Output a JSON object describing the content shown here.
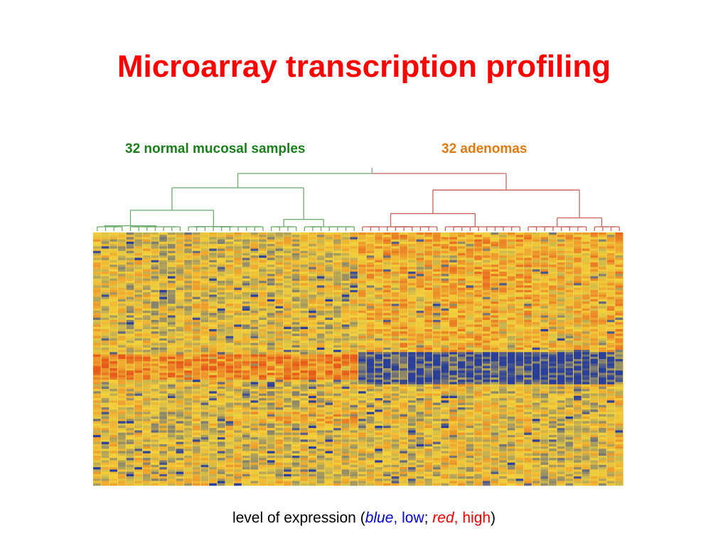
{
  "slide": {
    "title": "Microarray transcription profiling",
    "title_color": "#ff0000"
  },
  "groups": {
    "normal": {
      "label": "32 normal mucosal samples",
      "count": 32,
      "color": "#1a7f1a",
      "dendrogram_color": "#6aaa6a"
    },
    "adenoma": {
      "label": "32 adenomas",
      "count": 32,
      "color": "#e07a10",
      "dendrogram_color": "#c8645a"
    }
  },
  "heatmap": {
    "samples": 64,
    "low_color": "#2a3f9a",
    "mid_color": "#f2d23a",
    "high_color": "#e85a1a"
  },
  "caption": {
    "prefix": "level of expression (",
    "blue_word": "blue",
    "comma1": ",",
    "low_word": "low",
    "semicolon": ";",
    "red_word": "red",
    "comma2": ",",
    "high_word": "high",
    "suffix": ")",
    "blue_color": "#0000cc",
    "red_color": "#ee0000"
  }
}
